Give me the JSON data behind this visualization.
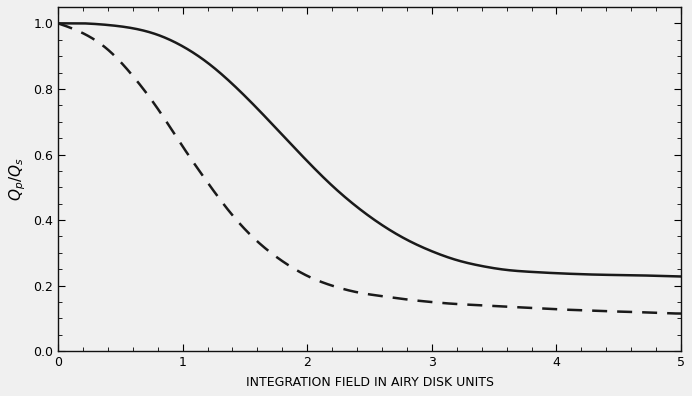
{
  "xlim": [
    0,
    5
  ],
  "ylim": [
    0.0,
    1.05
  ],
  "xticks": [
    0,
    1,
    2,
    3,
    4,
    5
  ],
  "yticks": [
    0.0,
    0.2,
    0.4,
    0.6,
    0.8,
    1.0
  ],
  "xlabel": "INTEGRATION FIELD IN AIRY DISK UNITS",
  "ylabel": "$Q_p/Q_s$",
  "line_color": "#1a1a1a",
  "background_color": "#f0f0f0",
  "figsize": [
    6.92,
    3.96
  ],
  "dpi": 100,
  "solid_x": [
    0.0,
    0.2,
    0.4,
    0.6,
    0.8,
    1.0,
    1.2,
    1.4,
    1.6,
    1.8,
    2.0,
    2.2,
    2.4,
    2.6,
    2.8,
    3.0,
    3.2,
    3.4,
    3.6,
    3.8,
    4.0,
    4.2,
    4.4,
    4.6,
    4.8,
    5.0
  ],
  "solid_y": [
    1.0,
    1.0,
    0.995,
    0.985,
    0.965,
    0.93,
    0.88,
    0.815,
    0.74,
    0.66,
    0.58,
    0.505,
    0.44,
    0.385,
    0.34,
    0.305,
    0.278,
    0.26,
    0.248,
    0.242,
    0.238,
    0.235,
    0.233,
    0.232,
    0.23,
    0.228
  ],
  "dashed_x": [
    0.0,
    0.2,
    0.4,
    0.6,
    0.8,
    1.0,
    1.2,
    1.4,
    1.6,
    1.8,
    2.0,
    2.2,
    2.4,
    2.6,
    2.8,
    3.0,
    3.2,
    3.4,
    3.6,
    3.8,
    4.0,
    4.2,
    4.4,
    4.6,
    4.8,
    5.0
  ],
  "dashed_y": [
    1.0,
    0.97,
    0.92,
    0.84,
    0.74,
    0.625,
    0.515,
    0.415,
    0.335,
    0.275,
    0.23,
    0.2,
    0.18,
    0.168,
    0.158,
    0.15,
    0.144,
    0.14,
    0.136,
    0.132,
    0.128,
    0.125,
    0.122,
    0.12,
    0.117,
    0.115
  ]
}
